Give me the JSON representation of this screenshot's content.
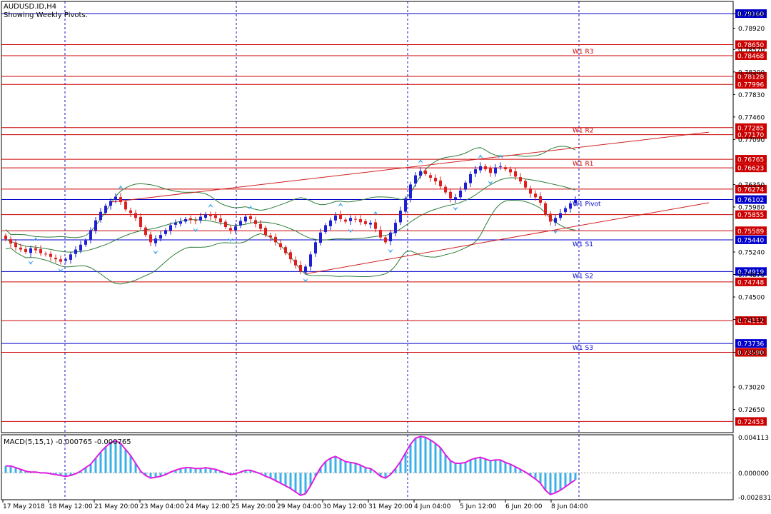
{
  "header": {
    "symbol": "AUDUSD.ID,H4",
    "subtitle": "Showing Weekly Pivots."
  },
  "colors": {
    "background": "#ffffff",
    "frame": "#000000",
    "bull_candle": "#1f1fd6",
    "bear_candle": "#e02020",
    "bollinger": "#2e7d3a",
    "trendline": "#d02020",
    "fractal": "#44aaee",
    "macd_hist": "#3ab0e8",
    "macd_signal": "#e01ee0",
    "grid_vertical": "#1010c0",
    "pivot_blue": "#0000cc",
    "pivot_red": "#cc0000"
  },
  "chart_data": [
    {
      "type": "candlestick",
      "title": "AUDUSD.ID,H4",
      "ylim": [
        0.7227,
        0.7936
      ],
      "y_ticks": [
        "0.79160",
        "0.78920",
        "0.78570",
        "0.78200",
        "0.77830",
        "0.77460",
        "0.77090",
        "0.76350",
        "0.75980",
        "0.75240",
        "0.74870",
        "0.74500",
        "0.74130",
        "0.73590",
        "0.73020",
        "0.72650"
      ],
      "price_tags": [
        {
          "label": "0.79160",
          "value": 0.7916,
          "color": "blue"
        },
        {
          "label": "0.78650",
          "value": 0.7865,
          "color": "red"
        },
        {
          "label": "0.78468",
          "value": 0.78468,
          "color": "red"
        },
        {
          "label": "0.78128",
          "value": 0.78128,
          "color": "red"
        },
        {
          "label": "0.77996",
          "value": 0.77996,
          "color": "red"
        },
        {
          "label": "0.77285",
          "value": 0.77285,
          "color": "red"
        },
        {
          "label": "0.77170",
          "value": 0.7717,
          "color": "red"
        },
        {
          "label": "0.76765",
          "value": 0.76765,
          "color": "red"
        },
        {
          "label": "0.76623",
          "value": 0.76623,
          "color": "red"
        },
        {
          "label": "0.76274",
          "value": 0.76274,
          "color": "red"
        },
        {
          "label": "0.76102",
          "value": 0.76102,
          "color": "blue"
        },
        {
          "label": "0.75855",
          "value": 0.75855,
          "color": "red"
        },
        {
          "label": "0.75589",
          "value": 0.75589,
          "color": "red"
        },
        {
          "label": "0.75440",
          "value": 0.7544,
          "color": "blue"
        },
        {
          "label": "0.74919",
          "value": 0.74919,
          "color": "blue"
        },
        {
          "label": "0.74748",
          "value": 0.74748,
          "color": "red"
        },
        {
          "label": "0.74112",
          "value": 0.74112,
          "color": "red"
        },
        {
          "label": "0.73736",
          "value": 0.73736,
          "color": "blue"
        },
        {
          "label": "0.73590",
          "value": 0.7359,
          "color": "red"
        },
        {
          "label": "0.72453",
          "value": 0.72453,
          "color": "red"
        }
      ],
      "pivot_labels": [
        {
          "label": "W1 R3",
          "value": 0.78468
        },
        {
          "label": "W1 R2",
          "value": 0.7717
        },
        {
          "label": "W1 R1",
          "value": 0.76623
        },
        {
          "label": "W1 Pivot",
          "value": 0.76102
        },
        {
          "label": "W1 S1",
          "value": 0.7544
        },
        {
          "label": "W1 S2",
          "value": 0.74919
        },
        {
          "label": "W1 S3",
          "value": 0.73736
        }
      ],
      "x_labels": [
        "17 May 2018",
        "18 May 12:00",
        "21 May 20:00",
        "23 May 04:00",
        "24 May 12:00",
        "25 May 20:00",
        "29 May 04:00",
        "30 May 12:00",
        "31 May 20:00",
        "4 Jun 04:00",
        "5 Jun 12:00",
        "6 Jun 20:00",
        "8 Jun 04:00"
      ],
      "closes": [
        0.7545,
        0.7538,
        0.7532,
        0.7528,
        0.7524,
        0.753,
        0.7527,
        0.7522,
        0.752,
        0.7516,
        0.7512,
        0.7508,
        0.7512,
        0.752,
        0.7528,
        0.7536,
        0.7543,
        0.756,
        0.7576,
        0.759,
        0.76,
        0.7608,
        0.7615,
        0.7606,
        0.7594,
        0.7588,
        0.758,
        0.7565,
        0.7552,
        0.754,
        0.7546,
        0.7552,
        0.756,
        0.7568,
        0.7572,
        0.7574,
        0.7578,
        0.7577,
        0.7575,
        0.7582,
        0.7586,
        0.7583,
        0.758,
        0.7573,
        0.7565,
        0.756,
        0.7566,
        0.7575,
        0.7582,
        0.7578,
        0.757,
        0.7562,
        0.7552,
        0.7548,
        0.754,
        0.7532,
        0.7522,
        0.7512,
        0.7502,
        0.7492,
        0.75,
        0.752,
        0.754,
        0.7556,
        0.7568,
        0.7576,
        0.7584,
        0.7578,
        0.7574,
        0.758,
        0.7578,
        0.7573,
        0.757,
        0.7572,
        0.7562,
        0.7548,
        0.754,
        0.7556,
        0.7572,
        0.7592,
        0.7612,
        0.7635,
        0.765,
        0.7657,
        0.7652,
        0.7646,
        0.764,
        0.7632,
        0.7622,
        0.7612,
        0.7614,
        0.7625,
        0.7638,
        0.7652,
        0.766,
        0.7665,
        0.766,
        0.7654,
        0.7663,
        0.7665,
        0.766,
        0.7655,
        0.7648,
        0.764,
        0.763,
        0.762,
        0.7614,
        0.7605,
        0.7586,
        0.7574,
        0.758,
        0.7588,
        0.7596,
        0.7604,
        0.761
      ],
      "macd": {
        "label": "MACD(5,15,1) -0.000765 -0.000765",
        "ylim": [
          -0.0031,
          0.0044
        ],
        "y_ticks": [
          "0.004113",
          "0.000000",
          "-0.002831"
        ],
        "values": [
          0.0008,
          0.0008,
          0.0006,
          0.0004,
          0.0002,
          0.0001,
          0.0001,
          0.0,
          0.0,
          -0.0001,
          -0.0002,
          -0.0003,
          -0.0004,
          -0.0003,
          -0.0001,
          0.0002,
          0.0006,
          0.001,
          0.0017,
          0.0024,
          0.003,
          0.0035,
          0.0037,
          0.0034,
          0.0027,
          0.002,
          0.0011,
          0.0002,
          -0.0003,
          -0.0006,
          -0.0005,
          -0.0004,
          -0.0002,
          0.0001,
          0.0003,
          0.0005,
          0.0006,
          0.0006,
          0.0005,
          0.0005,
          0.0006,
          0.0005,
          0.0004,
          0.0002,
          0.0,
          -0.0002,
          -0.0001,
          0.0001,
          0.0003,
          0.0003,
          0.0001,
          -0.0001,
          -0.0004,
          -0.0006,
          -0.0009,
          -0.0012,
          -0.0015,
          -0.0018,
          -0.0022,
          -0.0026,
          -0.0024,
          -0.0015,
          -0.0004,
          0.0006,
          0.0013,
          0.0017,
          0.0019,
          0.0016,
          0.0013,
          0.0012,
          0.0011,
          0.0009,
          0.0006,
          0.0005,
          0.0001,
          -0.0004,
          -0.0006,
          -0.0002,
          0.0005,
          0.0013,
          0.0023,
          0.0033,
          0.004,
          0.0042,
          0.0041,
          0.0038,
          0.0034,
          0.0029,
          0.0021,
          0.0014,
          0.0011,
          0.0011,
          0.0012,
          0.0015,
          0.0017,
          0.0018,
          0.0016,
          0.0014,
          0.0015,
          0.0015,
          0.0012,
          0.001,
          0.0007,
          0.0004,
          0.0001,
          -0.0003,
          -0.0007,
          -0.0012,
          -0.002,
          -0.0025,
          -0.0023,
          -0.002,
          -0.0016,
          -0.0012,
          -0.0008
        ]
      }
    }
  ]
}
